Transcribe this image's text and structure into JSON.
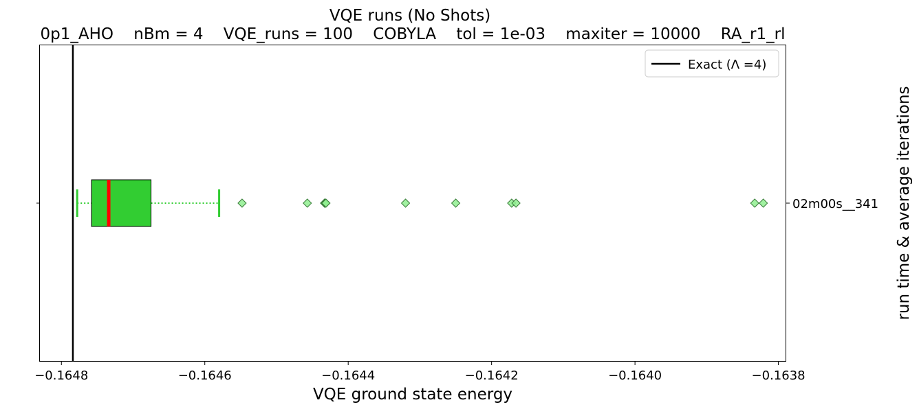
{
  "chart_data": {
    "type": "box",
    "title": "VQE runs (No Shots)",
    "subtitle": "0p1_AHO    nBm = 4    VQE_runs = 100    COBYLA    tol = 1e-03    maxiter = 10000    RA_r1_rl",
    "xlabel": "VQE ground state energy",
    "ylabel": "run time & average iterations",
    "xlim": [
      -0.16483,
      -0.16379
    ],
    "xticks": [
      -0.1648,
      -0.1646,
      -0.1644,
      -0.1642,
      -0.164,
      -0.1638
    ],
    "xtick_labels": [
      "−0.1648",
      "−0.1646",
      "−0.1644",
      "−0.1642",
      "−0.1640",
      "−0.1638"
    ],
    "categories": [
      "02m00s__341"
    ],
    "exact_value": -0.164784,
    "legend": {
      "position": "top-right",
      "entries": [
        "Exact (Λ =4)"
      ]
    },
    "boxes": [
      {
        "category": "02m00s__341",
        "whisker_low": -0.164778,
        "q1": -0.164758,
        "median": -0.164734,
        "q3": -0.164675,
        "whisker_high": -0.16458,
        "outliers": [
          -0.164548,
          -0.164457,
          -0.164433,
          -0.164432,
          -0.164431,
          -0.16432,
          -0.16425,
          -0.164172,
          -0.164166,
          -0.163833,
          -0.163821
        ]
      }
    ],
    "colors": {
      "box_fill": "#32cd32",
      "median": "#ff0000",
      "whisker": "#32cd32",
      "outlier_fill": "#90ee90",
      "outlier_edge": "#3a7d3a",
      "exact_line": "#000000"
    }
  }
}
